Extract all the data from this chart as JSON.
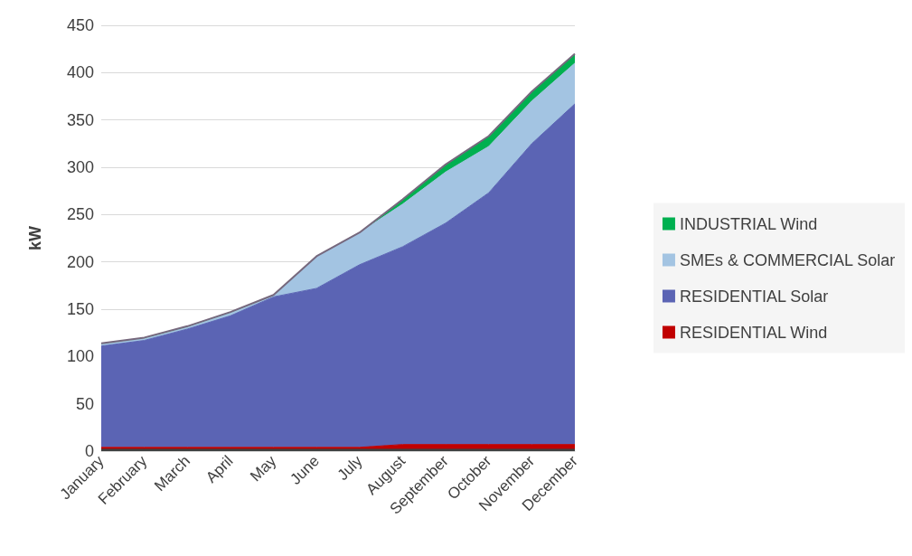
{
  "chart_data": {
    "type": "area",
    "stacked": true,
    "ylabel": "kW",
    "categories": [
      "January",
      "February",
      "March",
      "April",
      "May",
      "June",
      "July",
      "August",
      "September",
      "October",
      "November",
      "December"
    ],
    "series": [
      {
        "color": "#404040",
        "values": [
          2,
          2,
          2,
          2,
          2,
          2,
          2,
          2,
          2,
          2,
          2,
          2
        ]
      },
      {
        "name": "RESIDENTIAL Wind",
        "color": "#c00000",
        "values": [
          2,
          2,
          2,
          2,
          2,
          2,
          2,
          5,
          5,
          5,
          5,
          5
        ]
      },
      {
        "name": "RESIDENTIAL Solar",
        "color": "#5b64b4",
        "values": [
          107,
          113,
          125,
          139,
          159,
          168,
          193,
          209,
          234,
          266,
          318,
          360
        ]
      },
      {
        "name": "SMEs & COMMERCIAL Solar",
        "color": "#a3c4e2",
        "values": [
          2,
          2,
          2,
          3,
          1,
          34,
          34,
          45,
          54,
          49,
          45,
          43
        ]
      },
      {
        "name": "INDUSTRIAL Wind",
        "color": "#00b050",
        "values": [
          1,
          1,
          1,
          1,
          1,
          0,
          0,
          5,
          8,
          11,
          10,
          10
        ]
      }
    ],
    "ylim": [
      0,
      450
    ],
    "yticks": [
      0,
      50,
      100,
      150,
      200,
      250,
      300,
      350,
      400,
      450
    ],
    "grid": "y",
    "legend": "right"
  }
}
